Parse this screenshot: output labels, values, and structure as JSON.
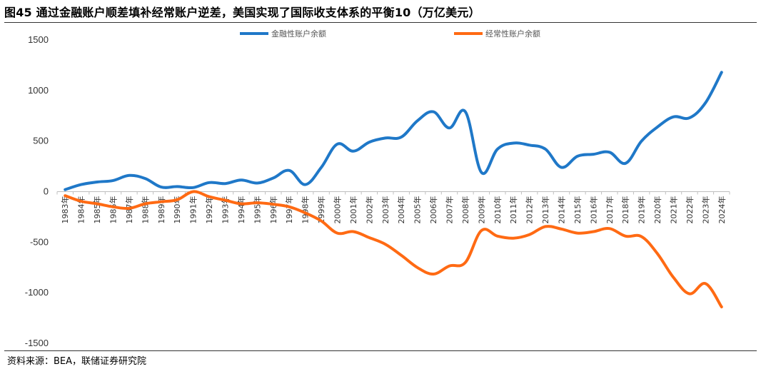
{
  "title": "图45 通过金融账户顺差填补经常账户逆差，美国实现了国际收支体系的平衡10（万亿美元）",
  "source": "资料来源：BEA，联储证券研究院",
  "chart_data": {
    "type": "line",
    "categories": [
      "1983年",
      "1984年",
      "1985年",
      "1986年",
      "1987年",
      "1988年",
      "1989年",
      "1990年",
      "1991年",
      "1992年",
      "1993年",
      "1994年",
      "1995年",
      "1996年",
      "1997年",
      "1998年",
      "1999年",
      "2000年",
      "2001年",
      "2002年",
      "2003年",
      "2004年",
      "2005年",
      "2006年",
      "2007年",
      "2008年",
      "2009年",
      "2010年",
      "2011年",
      "2012年",
      "2013年",
      "2014年",
      "2015年",
      "2016年",
      "2017年",
      "2018年",
      "2019年",
      "2020年",
      "2021年",
      "2022年",
      "2023年",
      "2024年"
    ],
    "series": [
      {
        "name": "金融性账户余额",
        "color": "#1f78c8",
        "values": [
          20,
          70,
          95,
          110,
          160,
          130,
          45,
          50,
          40,
          90,
          80,
          115,
          85,
          135,
          210,
          70,
          240,
          470,
          400,
          490,
          530,
          540,
          700,
          790,
          630,
          790,
          190,
          420,
          480,
          460,
          420,
          240,
          350,
          370,
          390,
          280,
          500,
          640,
          740,
          730,
          880,
          1180
        ]
      },
      {
        "name": "经常性账户余额",
        "color": "#ff6a13",
        "values": [
          -40,
          -95,
          -120,
          -150,
          -165,
          -120,
          -100,
          -80,
          0,
          -50,
          -85,
          -120,
          -110,
          -125,
          -150,
          -210,
          -290,
          -410,
          -395,
          -455,
          -520,
          -630,
          -750,
          -815,
          -735,
          -700,
          -385,
          -440,
          -460,
          -425,
          -345,
          -370,
          -410,
          -395,
          -365,
          -440,
          -445,
          -615,
          -850,
          -1010,
          -910,
          -1140
        ]
      }
    ],
    "ylim": [
      -1500,
      1500
    ],
    "yticks": [
      1500,
      1000,
      500,
      0,
      -500,
      -1000,
      -1500
    ],
    "legend_position": "top"
  }
}
